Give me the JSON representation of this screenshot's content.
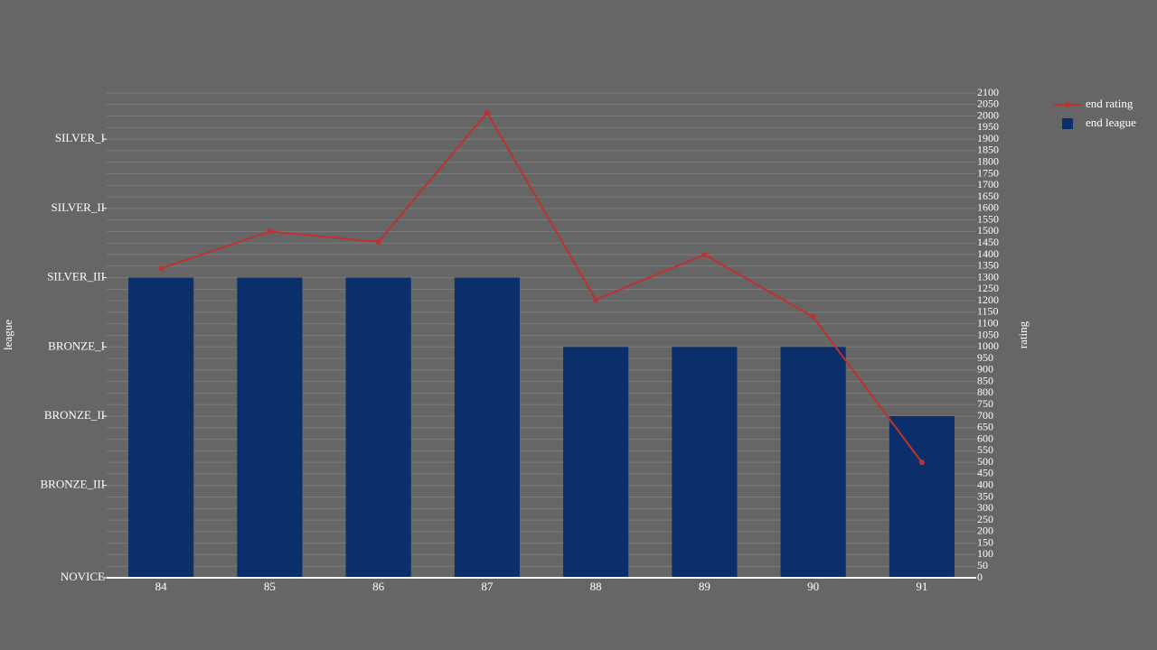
{
  "chart_data": {
    "type": "bar-line",
    "categories": [
      "84",
      "85",
      "86",
      "87",
      "88",
      "89",
      "90",
      "91"
    ],
    "series": [
      {
        "name": "end league",
        "type": "bar",
        "color": "#0b2f6b",
        "axis": "y",
        "values": [
          1300,
          1300,
          1300,
          1300,
          1000,
          1000,
          1000,
          700
        ]
      },
      {
        "name": "end rating",
        "type": "line",
        "color": "#c0302f",
        "axis": "y2",
        "values": [
          1340,
          1500,
          1455,
          2015,
          1205,
          1400,
          1130,
          500
        ]
      }
    ],
    "ylabel": "league",
    "y2label": "rating",
    "ylim": [
      0,
      2100
    ],
    "yticks": [
      {
        "value": 0,
        "label": "NOVICE"
      },
      {
        "value": 400,
        "label": "BRONZE_III"
      },
      {
        "value": 700,
        "label": "BRONZE_II"
      },
      {
        "value": 1000,
        "label": "BRONZE_I"
      },
      {
        "value": 1300,
        "label": "SILVER_III"
      },
      {
        "value": 1600,
        "label": "SILVER_II"
      },
      {
        "value": 1900,
        "label": "SILVER_I"
      }
    ],
    "y2lim": [
      0,
      2100
    ],
    "y2ticks": [
      0,
      50,
      100,
      150,
      200,
      250,
      300,
      350,
      400,
      450,
      500,
      550,
      600,
      650,
      700,
      750,
      800,
      850,
      900,
      950,
      1000,
      1050,
      1100,
      1150,
      1200,
      1250,
      1300,
      1350,
      1400,
      1450,
      1500,
      1550,
      1600,
      1650,
      1700,
      1750,
      1800,
      1850,
      1900,
      1950,
      2000,
      2050,
      2100
    ],
    "grid": true,
    "legend": "top-right"
  }
}
